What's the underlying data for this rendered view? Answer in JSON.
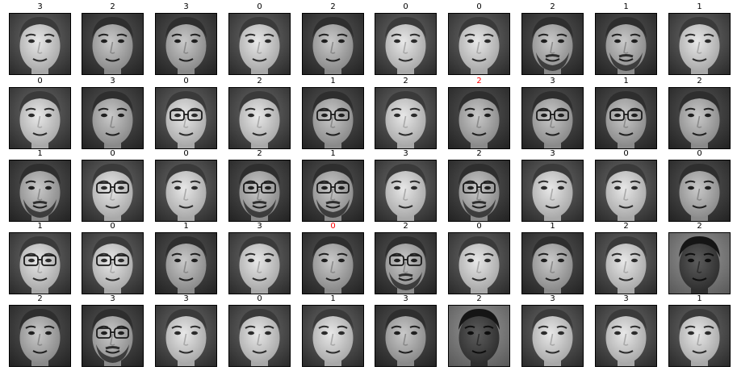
{
  "colors": {
    "label": "#000000",
    "label_error": "#ff0000",
    "frame": "#000000"
  },
  "rows": [
    {
      "faces": [
        {
          "label": "3",
          "error": false,
          "glasses": false,
          "beard": false,
          "tone": "light"
        },
        {
          "label": "2",
          "error": false,
          "glasses": false,
          "beard": false,
          "tone": "mid"
        },
        {
          "label": "3",
          "error": false,
          "glasses": false,
          "beard": false,
          "tone": "mid"
        },
        {
          "label": "0",
          "error": false,
          "glasses": false,
          "beard": false,
          "tone": "light"
        },
        {
          "label": "2",
          "error": false,
          "glasses": false,
          "beard": false,
          "tone": "mid"
        },
        {
          "label": "0",
          "error": false,
          "glasses": false,
          "beard": false,
          "tone": "light"
        },
        {
          "label": "0",
          "error": false,
          "glasses": false,
          "beard": false,
          "tone": "light"
        },
        {
          "label": "2",
          "error": false,
          "glasses": false,
          "beard": true,
          "tone": "mid"
        },
        {
          "label": "1",
          "error": false,
          "glasses": false,
          "beard": true,
          "tone": "mid"
        },
        {
          "label": "1",
          "error": false,
          "glasses": false,
          "beard": false,
          "tone": "light"
        }
      ]
    },
    {
      "faces": [
        {
          "label": "0",
          "error": false,
          "glasses": false,
          "beard": false,
          "tone": "light"
        },
        {
          "label": "3",
          "error": false,
          "glasses": false,
          "beard": false,
          "tone": "mid"
        },
        {
          "label": "0",
          "error": false,
          "glasses": true,
          "beard": false,
          "tone": "light"
        },
        {
          "label": "2",
          "error": false,
          "glasses": false,
          "beard": false,
          "tone": "light"
        },
        {
          "label": "1",
          "error": false,
          "glasses": true,
          "beard": false,
          "tone": "mid"
        },
        {
          "label": "2",
          "error": false,
          "glasses": false,
          "beard": false,
          "tone": "light"
        },
        {
          "label": "2",
          "error": true,
          "glasses": false,
          "beard": false,
          "tone": "mid"
        },
        {
          "label": "3",
          "error": false,
          "glasses": true,
          "beard": false,
          "tone": "mid"
        },
        {
          "label": "1",
          "error": false,
          "glasses": true,
          "beard": false,
          "tone": "mid"
        },
        {
          "label": "2",
          "error": false,
          "glasses": false,
          "beard": false,
          "tone": "mid"
        }
      ]
    },
    {
      "faces": [
        {
          "label": "1",
          "error": false,
          "glasses": false,
          "beard": true,
          "tone": "mid"
        },
        {
          "label": "0",
          "error": false,
          "glasses": true,
          "beard": false,
          "tone": "light"
        },
        {
          "label": "0",
          "error": false,
          "glasses": false,
          "beard": false,
          "tone": "light"
        },
        {
          "label": "2",
          "error": false,
          "glasses": true,
          "beard": true,
          "tone": "mid"
        },
        {
          "label": "1",
          "error": false,
          "glasses": true,
          "beard": true,
          "tone": "mid"
        },
        {
          "label": "3",
          "error": false,
          "glasses": false,
          "beard": false,
          "tone": "light"
        },
        {
          "label": "2",
          "error": false,
          "glasses": true,
          "beard": true,
          "tone": "mid"
        },
        {
          "label": "3",
          "error": false,
          "glasses": false,
          "beard": false,
          "tone": "light"
        },
        {
          "label": "0",
          "error": false,
          "glasses": false,
          "beard": false,
          "tone": "light"
        },
        {
          "label": "0",
          "error": false,
          "glasses": false,
          "beard": false,
          "tone": "mid"
        }
      ]
    },
    {
      "faces": [
        {
          "label": "1",
          "error": false,
          "glasses": true,
          "beard": false,
          "tone": "light"
        },
        {
          "label": "0",
          "error": false,
          "glasses": true,
          "beard": false,
          "tone": "light"
        },
        {
          "label": "1",
          "error": false,
          "glasses": false,
          "beard": false,
          "tone": "mid"
        },
        {
          "label": "3",
          "error": false,
          "glasses": false,
          "beard": false,
          "tone": "light"
        },
        {
          "label": "0",
          "error": true,
          "glasses": false,
          "beard": false,
          "tone": "mid"
        },
        {
          "label": "2",
          "error": false,
          "glasses": true,
          "beard": true,
          "tone": "mid"
        },
        {
          "label": "0",
          "error": false,
          "glasses": false,
          "beard": false,
          "tone": "light"
        },
        {
          "label": "1",
          "error": false,
          "glasses": false,
          "beard": false,
          "tone": "mid"
        },
        {
          "label": "2",
          "error": false,
          "glasses": false,
          "beard": false,
          "tone": "light"
        },
        {
          "label": "2",
          "error": false,
          "glasses": false,
          "beard": false,
          "tone": "dark"
        }
      ]
    },
    {
      "faces": [
        {
          "label": "2",
          "error": false,
          "glasses": false,
          "beard": false,
          "tone": "mid"
        },
        {
          "label": "3",
          "error": false,
          "glasses": true,
          "beard": true,
          "tone": "mid"
        },
        {
          "label": "3",
          "error": false,
          "glasses": false,
          "beard": false,
          "tone": "light"
        },
        {
          "label": "0",
          "error": false,
          "glasses": false,
          "beard": false,
          "tone": "light"
        },
        {
          "label": "1",
          "error": false,
          "glasses": false,
          "beard": false,
          "tone": "light"
        },
        {
          "label": "3",
          "error": false,
          "glasses": false,
          "beard": false,
          "tone": "mid"
        },
        {
          "label": "2",
          "error": false,
          "glasses": false,
          "beard": false,
          "tone": "dark"
        },
        {
          "label": "3",
          "error": false,
          "glasses": false,
          "beard": false,
          "tone": "light"
        },
        {
          "label": "3",
          "error": false,
          "glasses": false,
          "beard": false,
          "tone": "light"
        },
        {
          "label": "1",
          "error": false,
          "glasses": false,
          "beard": false,
          "tone": "light"
        }
      ]
    }
  ]
}
